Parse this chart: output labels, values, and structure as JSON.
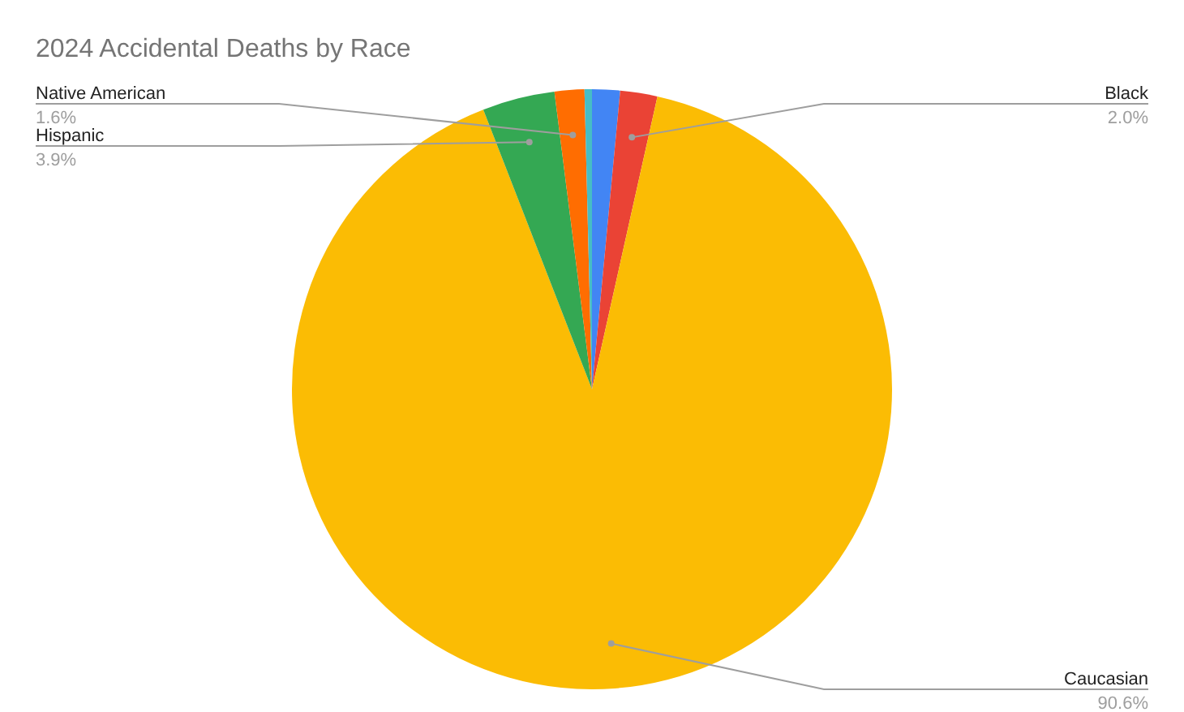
{
  "chart_data": {
    "type": "pie",
    "title": "2024 Accidental Deaths by Race",
    "categories": [
      null,
      "Black",
      "Caucasian",
      "Hispanic",
      "Native American",
      null
    ],
    "values": [
      1.5,
      2.0,
      90.6,
      3.9,
      1.6,
      0.4
    ],
    "value_labels": [
      null,
      "2.0%",
      "90.6%",
      "3.9%",
      "1.6%",
      null
    ],
    "colors": [
      "#4285f4",
      "#ea4335",
      "#fbbc04",
      "#34a853",
      "#ff6d01",
      "#46bdc6"
    ],
    "legend": false
  }
}
